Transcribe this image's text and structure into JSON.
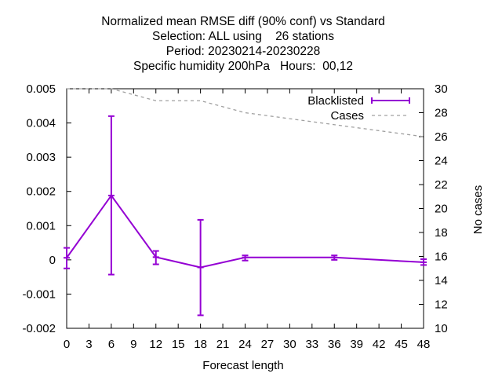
{
  "chart_data": {
    "type": "line",
    "title_lines": [
      "Normalized mean RMSE diff (90% conf) vs Standard",
      "Selection: ALL using    26 stations",
      "Period: 20230214-20230228",
      "Specific humidity 200hPa   Hours:  00,12"
    ],
    "xlabel": "Forecast length",
    "ylabel": "",
    "y2label": "No cases",
    "xlim": [
      0,
      48
    ],
    "ylim": [
      -0.002,
      0.005
    ],
    "y2lim": [
      10,
      30
    ],
    "x_ticks": [
      0,
      3,
      6,
      9,
      12,
      15,
      18,
      21,
      24,
      27,
      30,
      33,
      36,
      39,
      42,
      45,
      48
    ],
    "y_ticks": [
      "-0.002",
      "-0.001",
      "0",
      "0.001",
      "0.002",
      "0.003",
      "0.004",
      "0.005"
    ],
    "y2_ticks": [
      10,
      12,
      14,
      16,
      18,
      20,
      22,
      24,
      26,
      28,
      30
    ],
    "grid": false,
    "legend_position": "top-right",
    "series": [
      {
        "name": "Blacklisted",
        "color": "#9400d3",
        "style": "line-errorbars",
        "points": [
          {
            "x": 0,
            "y": 6e-05,
            "low": -0.00025,
            "high": 0.00035
          },
          {
            "x": 6,
            "y": 0.00188,
            "low": -0.00043,
            "high": 0.0042
          },
          {
            "x": 12,
            "y": 8e-05,
            "low": -0.00013,
            "high": 0.00026
          },
          {
            "x": 18,
            "y": -0.00022,
            "low": -0.00162,
            "high": 0.00117
          },
          {
            "x": 24,
            "y": 7e-05,
            "low": -2e-05,
            "high": 0.00013
          },
          {
            "x": 36,
            "y": 7e-05,
            "low": 0.0,
            "high": 0.00013
          },
          {
            "x": 48,
            "y": -7e-05,
            "low": -0.00015,
            "high": 2e-05
          }
        ]
      },
      {
        "name": "Cases",
        "color": "#a0a0a0",
        "style": "dashed",
        "axis": "y2",
        "x": [
          0,
          6,
          12,
          18,
          24,
          36,
          48
        ],
        "values": [
          30,
          30,
          29,
          29,
          28,
          27,
          26
        ]
      }
    ]
  }
}
